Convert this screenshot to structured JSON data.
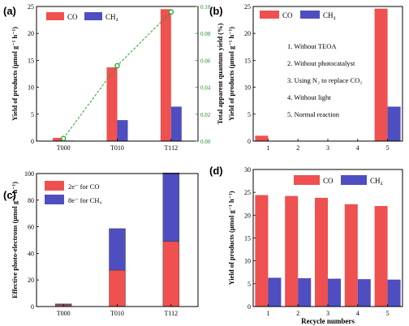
{
  "colors": {
    "co": "#ef5050",
    "ch4": "#4e4ec0",
    "electrons_co": "#ef5050",
    "electrons_ch4": "#4e4ec0",
    "qy_line": "#2aa02a",
    "axis": "#000000",
    "qy_axis": "#228B22"
  },
  "chart_data": [
    {
      "panel": "(a)",
      "type": "bar",
      "categories": [
        "T000",
        "T010",
        "T112"
      ],
      "series": [
        {
          "name": "CO",
          "values": [
            0.6,
            13.7,
            24.5
          ]
        },
        {
          "name": "CH4",
          "values": [
            0.1,
            3.9,
            6.4
          ]
        }
      ],
      "line_series": {
        "values": [
          0.002,
          0.056,
          0.096
        ]
      },
      "ylabel": "Yield of products (μmol g⁻¹ h⁻¹)",
      "y2label": "Total apparent quantum yield (%)",
      "ylim": [
        0,
        25
      ],
      "yticks": [
        "0",
        "5",
        "10",
        "15",
        "20",
        "25"
      ],
      "y2lim": [
        0,
        0.1
      ],
      "y2ticks": [
        "0.00",
        "0.02",
        "0.04",
        "0.06",
        "0.08",
        "0.10"
      ],
      "legend": [
        "CO",
        "CH₄"
      ],
      "legend_position": "top-left"
    },
    {
      "panel": "(b)",
      "type": "bar",
      "categories": [
        "1",
        "2",
        "3",
        "4",
        "5"
      ],
      "series": [
        {
          "name": "CO",
          "values": [
            1.0,
            0,
            0,
            0,
            24.6
          ]
        },
        {
          "name": "CH4",
          "values": [
            0,
            0,
            0,
            0,
            6.4
          ]
        }
      ],
      "ylabel": "Yield of products (μmol g⁻¹ h⁻¹)",
      "ylim": [
        0,
        25
      ],
      "yticks": [
        "0",
        "5",
        "10",
        "15",
        "20",
        "25"
      ],
      "legend": [
        "CO",
        "CH₄"
      ],
      "legend_position": "top-left",
      "annotations": [
        "1. Without TEOA",
        "2. Without photocatalyst",
        "3. Using N₂ to replace CO₂",
        "4. Without light",
        "5. Normal reaction"
      ]
    },
    {
      "panel": "(c)",
      "type": "bar",
      "stacked": true,
      "categories": [
        "T000",
        "T010",
        "T112"
      ],
      "series": [
        {
          "name": "2e⁻ for CO",
          "values": [
            1.2,
            27.4,
            49.0
          ]
        },
        {
          "name": "8e⁻ for CH₄",
          "values": [
            0.8,
            31.2,
            51.5
          ]
        }
      ],
      "ylabel": "Effective photo-electrons (μmol g⁻¹ h⁻¹)",
      "ylim": [
        0,
        100
      ],
      "yticks": [
        "0",
        "20",
        "40",
        "60",
        "80",
        "100"
      ],
      "legend": [
        "2e⁻ for CO",
        "8e⁻ for CH₄"
      ],
      "legend_position": "top-left"
    },
    {
      "panel": "(d)",
      "type": "bar",
      "categories": [
        "1",
        "2",
        "3",
        "4",
        "5"
      ],
      "series": [
        {
          "name": "CO",
          "values": [
            24.4,
            24.2,
            23.8,
            22.4,
            22.0
          ]
        },
        {
          "name": "CH4",
          "values": [
            6.3,
            6.2,
            6.1,
            6.0,
            5.9
          ]
        }
      ],
      "xlabel": "Recycle numbers",
      "ylabel": "Yield of products (μmol g⁻¹ h⁻¹)",
      "ylim": [
        0,
        30
      ],
      "yticks": [
        "0",
        "5",
        "10",
        "15",
        "20",
        "25",
        "30"
      ],
      "legend": [
        "CO",
        "CH₄"
      ],
      "legend_position": "top-right"
    }
  ]
}
